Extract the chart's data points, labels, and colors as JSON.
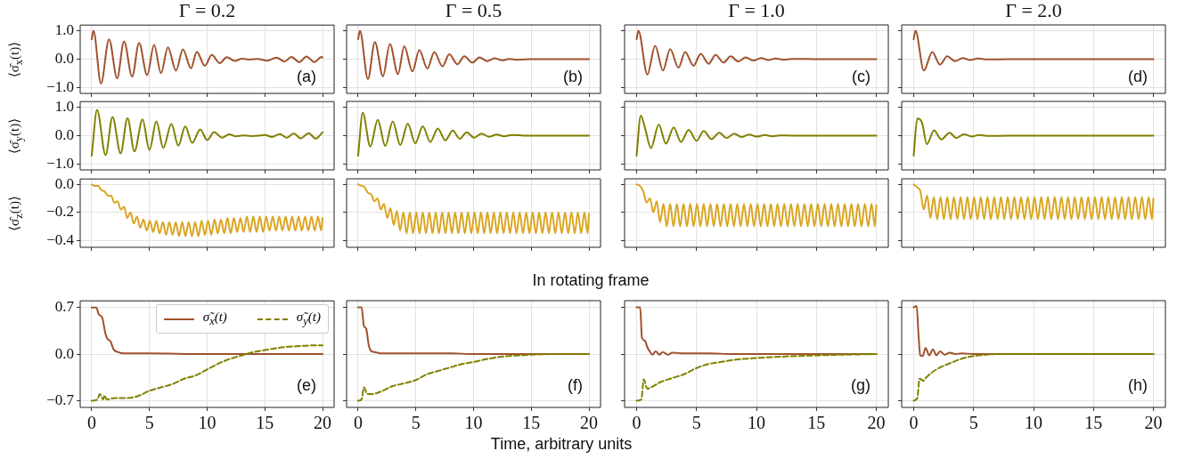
{
  "chart_data": [
    {
      "type": "line",
      "title": "Γ = 0.2",
      "ylabel": "⟨σ̂$_{x}$(t)⟩",
      "annotations": [
        "(a)"
      ],
      "xlim": [
        -1,
        21
      ],
      "xticks": [
        0,
        5,
        10,
        15,
        20
      ],
      "ylim": [
        -1.2,
        1.2
      ],
      "yticks": [
        {
          "value": -1,
          "label": "−1.0"
        },
        {
          "value": 0,
          "label": "0.0"
        },
        {
          "value": 1,
          "label": "1.0"
        }
      ],
      "grid": true,
      "tick_labels": "y",
      "x": [
        0,
        0.15,
        0.8,
        1.5,
        2.2,
        2.8,
        3.5,
        4.1,
        4.8,
        5.4,
        6.0,
        6.6,
        7.3,
        7.9,
        8.6,
        9.1,
        9.8,
        10.4,
        11.1,
        11.7,
        12.4,
        13.0,
        13.7,
        14.4,
        15.2,
        16.0,
        16.7,
        17.3,
        18.0,
        18.6,
        19.3,
        19.9,
        20
      ],
      "series": [
        {
          "color": "#a0522d",
          "values": [
            0.7,
            1.0,
            -0.85,
            0.7,
            -0.67,
            0.63,
            -0.61,
            0.57,
            -0.56,
            0.5,
            -0.49,
            0.42,
            -0.4,
            0.35,
            -0.32,
            0.26,
            -0.23,
            0.15,
            -0.14,
            0.07,
            -0.06,
            0.02,
            -0.01,
            0.01,
            -0.05,
            0.06,
            -0.08,
            0.08,
            -0.1,
            0.1,
            -0.1,
            0.08,
            0.06
          ]
        }
      ]
    },
    {
      "type": "line",
      "title": "Γ = 0.5",
      "annotations": [
        "(b)"
      ],
      "xlim": [
        -1,
        21
      ],
      "xticks": [
        0,
        5,
        10,
        15,
        20
      ],
      "ylim": [
        -1.2,
        1.2
      ],
      "yticks": [
        -1,
        0,
        1
      ],
      "grid": true,
      "tick_labels": false,
      "x": [
        0,
        0.15,
        0.85,
        1.45,
        2.15,
        2.75,
        3.45,
        4.0,
        4.7,
        5.3,
        6.0,
        6.6,
        7.3,
        7.9,
        8.6,
        9.2,
        9.9,
        10.5,
        11.2,
        11.8,
        12.5,
        13.1,
        13.8,
        15,
        20
      ],
      "series": [
        {
          "color": "#a0522d",
          "values": [
            0.7,
            1.0,
            -0.7,
            0.6,
            -0.6,
            0.53,
            -0.52,
            0.45,
            -0.43,
            0.32,
            -0.33,
            0.25,
            -0.25,
            0.17,
            -0.18,
            0.1,
            -0.12,
            0.06,
            -0.07,
            0.03,
            -0.04,
            0.01,
            -0.02,
            0,
            0
          ]
        }
      ]
    },
    {
      "type": "line",
      "title": "Γ = 1.0",
      "annotations": [
        "(c)"
      ],
      "xlim": [
        -1,
        21
      ],
      "xticks": [
        0,
        5,
        10,
        15,
        20
      ],
      "ylim": [
        -1.2,
        1.2
      ],
      "yticks": [
        -1,
        0,
        1
      ],
      "grid": true,
      "tick_labels": false,
      "x": [
        0,
        0.15,
        0.9,
        1.55,
        2.2,
        2.8,
        3.5,
        4.05,
        4.75,
        5.35,
        6.0,
        6.6,
        7.25,
        7.85,
        8.5,
        9.1,
        9.75,
        10.4,
        11.0,
        11.6,
        12.3,
        12.9,
        15,
        20
      ],
      "series": [
        {
          "color": "#a0522d",
          "values": [
            0.7,
            1.0,
            -0.54,
            0.47,
            -0.4,
            0.35,
            -0.3,
            0.25,
            -0.23,
            0.19,
            -0.16,
            0.15,
            -0.12,
            0.1,
            -0.08,
            0.06,
            -0.05,
            0.04,
            -0.03,
            0.02,
            -0.02,
            0.01,
            0,
            0
          ]
        }
      ]
    },
    {
      "type": "line",
      "title": "Γ = 2.0",
      "annotations": [
        "(d)"
      ],
      "xlim": [
        -1,
        21
      ],
      "xticks": [
        0,
        5,
        10,
        15,
        20
      ],
      "ylim": [
        -1.2,
        1.2
      ],
      "yticks": [
        -1,
        0,
        1
      ],
      "grid": true,
      "tick_labels": false,
      "x": [
        0,
        0.15,
        0.85,
        1.55,
        2.2,
        2.8,
        3.45,
        4.1,
        4.7,
        5.35,
        6.0,
        8,
        20
      ],
      "series": [
        {
          "color": "#a0522d",
          "values": [
            0.7,
            1.0,
            -0.4,
            0.25,
            -0.19,
            0.1,
            -0.07,
            0.04,
            -0.03,
            0.02,
            -0.01,
            0,
            0
          ]
        }
      ]
    },
    {
      "type": "line",
      "ylabel": "⟨σ̂$_{y}$(t)⟩",
      "xlim": [
        -1,
        21
      ],
      "xticks": [
        0,
        5,
        10,
        15,
        20
      ],
      "ylim": [
        -1.2,
        1.2
      ],
      "yticks": [
        {
          "value": -1,
          "label": "−1.0"
        },
        {
          "value": 0,
          "label": "0.0"
        },
        {
          "value": 1,
          "label": "1.0"
        }
      ],
      "grid": true,
      "tick_labels": "y",
      "x": [
        0,
        0.46,
        1.2,
        1.8,
        2.5,
        3.1,
        3.7,
        4.4,
        5.0,
        5.6,
        6.2,
        6.9,
        7.5,
        8.1,
        8.7,
        9.4,
        10.0,
        10.6,
        11.3,
        11.9,
        12.5,
        13.1,
        13.8,
        14.4,
        15.0,
        15.6,
        16.3,
        16.9,
        17.5,
        18.1,
        18.8,
        19.4,
        20
      ],
      "series": [
        {
          "color": "#808000",
          "values": [
            -0.7,
            0.91,
            -0.68,
            0.66,
            -0.62,
            0.62,
            -0.55,
            0.57,
            -0.5,
            0.5,
            -0.43,
            0.42,
            -0.35,
            0.33,
            -0.25,
            0.22,
            -0.15,
            0.13,
            -0.07,
            0.05,
            -0.02,
            0.01,
            -0.01,
            0,
            0.03,
            -0.04,
            0.06,
            -0.07,
            0.08,
            -0.09,
            0.09,
            -0.1,
            0.12
          ]
        }
      ]
    },
    {
      "type": "line",
      "xlim": [
        -1,
        21
      ],
      "xticks": [
        0,
        5,
        10,
        15,
        20
      ],
      "ylim": [
        -1.2,
        1.2
      ],
      "yticks": [
        -1,
        0,
        1
      ],
      "grid": true,
      "tick_labels": false,
      "x": [
        0,
        0.4,
        1.05,
        1.7,
        2.35,
        3.0,
        3.65,
        4.3,
        4.95,
        5.6,
        6.25,
        6.9,
        7.55,
        8.2,
        8.8,
        9.4,
        10.05,
        10.7,
        11.35,
        12.0,
        12.65,
        13.3,
        15,
        20
      ],
      "series": [
        {
          "color": "#808000",
          "values": [
            -0.7,
            0.8,
            -0.38,
            0.55,
            -0.36,
            0.5,
            -0.33,
            0.42,
            -0.27,
            0.33,
            -0.22,
            0.25,
            -0.16,
            0.18,
            -0.11,
            0.12,
            -0.07,
            0.07,
            -0.04,
            0.04,
            -0.02,
            0.02,
            0,
            0
          ]
        }
      ]
    },
    {
      "type": "line",
      "xlim": [
        -1,
        21
      ],
      "xticks": [
        0,
        5,
        10,
        15,
        20
      ],
      "ylim": [
        -1.2,
        1.2
      ],
      "yticks": [
        -1,
        0,
        1
      ],
      "grid": true,
      "tick_labels": false,
      "x": [
        0,
        0.35,
        0.7,
        1.2,
        1.85,
        2.45,
        3.1,
        3.7,
        4.35,
        5.0,
        5.6,
        6.25,
        6.9,
        7.5,
        8.15,
        8.75,
        9.4,
        10.0,
        10.7,
        11.3,
        11.95,
        13,
        20
      ],
      "series": [
        {
          "color": "#808000",
          "values": [
            -0.7,
            0.7,
            0.27,
            -0.44,
            0.39,
            -0.28,
            0.29,
            -0.22,
            0.2,
            -0.18,
            0.16,
            -0.12,
            0.1,
            -0.08,
            0.07,
            -0.05,
            0.04,
            -0.03,
            0.02,
            -0.02,
            0.01,
            0,
            0
          ]
        }
      ]
    },
    {
      "type": "line",
      "xlim": [
        -1,
        21
      ],
      "xticks": [
        0,
        5,
        10,
        15,
        20
      ],
      "ylim": [
        -1.2,
        1.2
      ],
      "yticks": [
        -1,
        0,
        1
      ],
      "grid": true,
      "tick_labels": false,
      "x": [
        0,
        0.3,
        0.7,
        1.1,
        1.7,
        2.3,
        3.0,
        3.55,
        4.2,
        4.85,
        5.45,
        6.1,
        8,
        20
      ],
      "series": [
        {
          "color": "#808000",
          "values": [
            -0.7,
            0.6,
            0.45,
            -0.3,
            0.19,
            -0.13,
            0.1,
            -0.08,
            0.05,
            -0.03,
            0.02,
            -0.01,
            0,
            0
          ]
        }
      ]
    },
    {
      "type": "line",
      "ylabel": "⟨σ̂$_{z}$(t)⟩",
      "xlim": [
        -1,
        21
      ],
      "xticks": [
        0,
        5,
        10,
        15,
        20
      ],
      "ylim": [
        -0.45,
        0.04
      ],
      "yticks": [
        {
          "value": -0.4,
          "label": "−0.4"
        },
        {
          "value": -0.2,
          "label": "−0.2"
        },
        {
          "value": 0,
          "label": "0.0"
        }
      ],
      "grid": true,
      "tick_labels": "y",
      "x": [
        0,
        0.28,
        0.56,
        0.84,
        1.12,
        1.4,
        1.68,
        1.96,
        2.24,
        2.52,
        2.8,
        3.08,
        3.36,
        3.64,
        3.92,
        4.2,
        4.48,
        4.76,
        5.04,
        5.32,
        5.6,
        5.88,
        6.16,
        6.44,
        6.72,
        7,
        7.28,
        7.56,
        7.84,
        8.12,
        8.4,
        8.68,
        8.96,
        9.24,
        9.52,
        9.8,
        10.08,
        10.36,
        10.64,
        10.92,
        11.2,
        11.48,
        11.76,
        12.04,
        12.32,
        12.6,
        12.88,
        13.16,
        13.44,
        13.72,
        14,
        14.28,
        14.56,
        14.84,
        15.12,
        15.4,
        15.68,
        15.96,
        16.24,
        16.52,
        16.8,
        17.08,
        17.36,
        17.64,
        17.92,
        18.2,
        18.48,
        18.76,
        19.04,
        19.32,
        19.6,
        19.88,
        20
      ],
      "series": [
        {
          "color": "#daa520",
          "values": [
            0,
            -0.01,
            -0.01,
            -0.04,
            -0.05,
            -0.08,
            -0.08,
            -0.13,
            -0.12,
            -0.18,
            -0.16,
            -0.24,
            -0.2,
            -0.28,
            -0.23,
            -0.31,
            -0.25,
            -0.33,
            -0.26,
            -0.34,
            -0.26,
            -0.35,
            -0.27,
            -0.36,
            -0.27,
            -0.36,
            -0.27,
            -0.37,
            -0.27,
            -0.37,
            -0.27,
            -0.37,
            -0.27,
            -0.37,
            -0.26,
            -0.36,
            -0.26,
            -0.36,
            -0.25,
            -0.35,
            -0.25,
            -0.35,
            -0.24,
            -0.35,
            -0.24,
            -0.34,
            -0.24,
            -0.34,
            -0.23,
            -0.34,
            -0.23,
            -0.34,
            -0.23,
            -0.34,
            -0.23,
            -0.33,
            -0.23,
            -0.33,
            -0.23,
            -0.33,
            -0.23,
            -0.33,
            -0.23,
            -0.33,
            -0.23,
            -0.33,
            -0.23,
            -0.33,
            -0.23,
            -0.33,
            -0.23,
            -0.33,
            -0.24
          ]
        }
      ]
    },
    {
      "type": "line",
      "xlim": [
        -1,
        21
      ],
      "xticks": [
        0,
        5,
        10,
        15,
        20
      ],
      "ylim": [
        -0.45,
        0.04
      ],
      "yticks": [
        -0.4,
        -0.2,
        0
      ],
      "grid": true,
      "tick_labels": false,
      "x": [
        0,
        0.28,
        0.56,
        0.84,
        1.12,
        1.4,
        1.68,
        1.96,
        2.24,
        2.52,
        2.8,
        3.08,
        3.36,
        3.64,
        3.92,
        4.2,
        4.48,
        4.76,
        5.04,
        5.32,
        5.6,
        5.88,
        6.16,
        6.44,
        6.72,
        7,
        7.28,
        7.56,
        7.84,
        8.12,
        8.4,
        8.68,
        8.96,
        9.24,
        9.52,
        9.8,
        10.08,
        10.36,
        10.64,
        10.92,
        11.2,
        11.48,
        11.76,
        12.04,
        12.32,
        12.6,
        12.88,
        13.16,
        13.44,
        13.72,
        14,
        14.28,
        14.56,
        14.84,
        15.12,
        15.4,
        15.68,
        15.96,
        16.24,
        16.52,
        16.8,
        17.08,
        17.36,
        17.64,
        17.92,
        18.2,
        18.48,
        18.76,
        19.04,
        19.32,
        19.6,
        19.88,
        20
      ],
      "series": [
        {
          "color": "#daa520",
          "values": [
            0,
            -0.01,
            -0.02,
            -0.06,
            -0.07,
            -0.12,
            -0.1,
            -0.18,
            -0.14,
            -0.24,
            -0.17,
            -0.29,
            -0.19,
            -0.33,
            -0.2,
            -0.35,
            -0.2,
            -0.35,
            -0.2,
            -0.35,
            -0.2,
            -0.35,
            -0.2,
            -0.35,
            -0.2,
            -0.35,
            -0.2,
            -0.35,
            -0.2,
            -0.35,
            -0.2,
            -0.35,
            -0.2,
            -0.35,
            -0.2,
            -0.35,
            -0.2,
            -0.35,
            -0.2,
            -0.35,
            -0.2,
            -0.35,
            -0.2,
            -0.35,
            -0.2,
            -0.35,
            -0.2,
            -0.35,
            -0.2,
            -0.35,
            -0.2,
            -0.35,
            -0.2,
            -0.35,
            -0.2,
            -0.35,
            -0.2,
            -0.35,
            -0.2,
            -0.35,
            -0.2,
            -0.35,
            -0.2,
            -0.35,
            -0.2,
            -0.35,
            -0.2,
            -0.35,
            -0.2,
            -0.35,
            -0.2,
            -0.35,
            -0.21
          ]
        }
      ]
    },
    {
      "type": "line",
      "xlim": [
        -1,
        21
      ],
      "xticks": [
        0,
        5,
        10,
        15,
        20
      ],
      "ylim": [
        -0.45,
        0.04
      ],
      "yticks": [
        -0.4,
        -0.2,
        0
      ],
      "grid": true,
      "tick_labels": false,
      "x": [
        0,
        0.28,
        0.56,
        0.84,
        1.12,
        1.4,
        1.68,
        1.96,
        2.24,
        2.52,
        2.8,
        3.08,
        3.36,
        3.64,
        3.92,
        4.2,
        4.48,
        4.76,
        5.04,
        5.32,
        5.6,
        5.88,
        6.16,
        6.44,
        6.72,
        7,
        7.28,
        7.56,
        7.84,
        8.12,
        8.4,
        8.68,
        8.96,
        9.24,
        9.52,
        9.8,
        10.08,
        10.36,
        10.64,
        10.92,
        11.2,
        11.48,
        11.76,
        12.04,
        12.32,
        12.6,
        12.88,
        13.16,
        13.44,
        13.72,
        14,
        14.28,
        14.56,
        14.84,
        15.12,
        15.4,
        15.68,
        15.96,
        16.24,
        16.52,
        16.8,
        17.08,
        17.36,
        17.64,
        17.92,
        18.2,
        18.48,
        18.76,
        19.04,
        19.32,
        19.6,
        19.88,
        20
      ],
      "series": [
        {
          "color": "#daa520",
          "values": [
            0,
            -0.01,
            -0.05,
            -0.13,
            -0.1,
            -0.2,
            -0.12,
            -0.27,
            -0.14,
            -0.3,
            -0.14,
            -0.3,
            -0.14,
            -0.3,
            -0.14,
            -0.3,
            -0.14,
            -0.3,
            -0.14,
            -0.3,
            -0.14,
            -0.3,
            -0.14,
            -0.3,
            -0.14,
            -0.3,
            -0.14,
            -0.3,
            -0.14,
            -0.3,
            -0.14,
            -0.3,
            -0.14,
            -0.3,
            -0.14,
            -0.3,
            -0.14,
            -0.3,
            -0.14,
            -0.3,
            -0.14,
            -0.3,
            -0.14,
            -0.3,
            -0.14,
            -0.3,
            -0.14,
            -0.3,
            -0.14,
            -0.3,
            -0.14,
            -0.3,
            -0.14,
            -0.3,
            -0.14,
            -0.3,
            -0.14,
            -0.3,
            -0.14,
            -0.3,
            -0.14,
            -0.3,
            -0.14,
            -0.3,
            -0.14,
            -0.3,
            -0.14,
            -0.3,
            -0.14,
            -0.3,
            -0.14,
            -0.3,
            -0.15
          ]
        }
      ]
    },
    {
      "type": "line",
      "xlim": [
        -1,
        21
      ],
      "xticks": [
        0,
        5,
        10,
        15,
        20
      ],
      "ylim": [
        -0.45,
        0.04
      ],
      "yticks": [
        -0.4,
        -0.2,
        0
      ],
      "grid": true,
      "tick_labels": false,
      "x": [
        0,
        0.28,
        0.56,
        0.84,
        1.12,
        1.4,
        1.68,
        1.96,
        2.24,
        2.52,
        2.8,
        3.08,
        3.36,
        3.64,
        3.92,
        4.2,
        4.48,
        4.76,
        5.04,
        5.32,
        5.6,
        5.88,
        6.16,
        6.44,
        6.72,
        7,
        7.28,
        7.56,
        7.84,
        8.12,
        8.4,
        8.68,
        8.96,
        9.24,
        9.52,
        9.8,
        10.08,
        10.36,
        10.64,
        10.92,
        11.2,
        11.48,
        11.76,
        12.04,
        12.32,
        12.6,
        12.88,
        13.16,
        13.44,
        13.72,
        14,
        14.28,
        14.56,
        14.84,
        15.12,
        15.4,
        15.68,
        15.96,
        16.24,
        16.52,
        16.8,
        17.08,
        17.36,
        17.64,
        17.92,
        18.2,
        18.48,
        18.76,
        19.04,
        19.32,
        19.6,
        19.88,
        20
      ],
      "series": [
        {
          "color": "#daa520",
          "values": [
            0,
            -0.02,
            -0.05,
            -0.18,
            -0.08,
            -0.24,
            -0.09,
            -0.25,
            -0.09,
            -0.25,
            -0.09,
            -0.25,
            -0.09,
            -0.25,
            -0.09,
            -0.25,
            -0.09,
            -0.25,
            -0.09,
            -0.25,
            -0.09,
            -0.25,
            -0.09,
            -0.25,
            -0.09,
            -0.25,
            -0.09,
            -0.25,
            -0.09,
            -0.25,
            -0.09,
            -0.25,
            -0.09,
            -0.25,
            -0.09,
            -0.25,
            -0.09,
            -0.25,
            -0.09,
            -0.25,
            -0.09,
            -0.25,
            -0.09,
            -0.25,
            -0.09,
            -0.25,
            -0.09,
            -0.25,
            -0.09,
            -0.25,
            -0.09,
            -0.25,
            -0.09,
            -0.25,
            -0.09,
            -0.25,
            -0.09,
            -0.25,
            -0.09,
            -0.25,
            -0.09,
            -0.25,
            -0.09,
            -0.25,
            -0.09,
            -0.25,
            -0.09,
            -0.25,
            -0.09,
            -0.25,
            -0.09,
            -0.25,
            -0.1
          ]
        }
      ]
    },
    {
      "type": "line",
      "annotations": [
        "(e)"
      ],
      "legend": "top right",
      "xlim": [
        -1,
        21
      ],
      "xticks": [
        0,
        5,
        10,
        15,
        20
      ],
      "ylim": [
        -0.8,
        0.8
      ],
      "yticks": [
        {
          "value": -0.7,
          "label": "−0.7"
        },
        {
          "value": 0,
          "label": "0.0"
        },
        {
          "value": 0.7,
          "label": "0.7"
        }
      ],
      "grid": true,
      "series": [
        {
          "name": "σ̃$_{x}$(t)",
          "color": "#a0522d",
          "line_style": "solid",
          "x": [
            0,
            0.4,
            0.6,
            0.9,
            1.2,
            1.4,
            1.6,
            1.9,
            2.3,
            2.8,
            3.5,
            5,
            10,
            20
          ],
          "values": [
            0.7,
            0.7,
            0.6,
            0.55,
            0.3,
            0.22,
            0.2,
            0.07,
            0.03,
            0.01,
            0.01,
            0.01,
            0,
            0
          ]
        },
        {
          "name": "σ̃$_{y}$(t)",
          "color": "#808000",
          "line_style": "dashed",
          "x": [
            0,
            0.5,
            0.7,
            1.0,
            1.1,
            1.3,
            2,
            3,
            4,
            5,
            6,
            7,
            8,
            9,
            10,
            11,
            12,
            13,
            14,
            15,
            16,
            17,
            18,
            19,
            20
          ],
          "values": [
            -0.7,
            -0.68,
            -0.6,
            -0.68,
            -0.62,
            -0.68,
            -0.66,
            -0.66,
            -0.63,
            -0.55,
            -0.5,
            -0.45,
            -0.37,
            -0.32,
            -0.23,
            -0.14,
            -0.07,
            -0.02,
            0.03,
            0.06,
            0.09,
            0.11,
            0.12,
            0.13,
            0.13
          ]
        }
      ]
    },
    {
      "type": "line",
      "title": "In rotating frame",
      "xlabel": "Time, arbitrary units",
      "annotations": [
        "(f)"
      ],
      "xlim": [
        -1,
        21
      ],
      "xticks": [
        0,
        5,
        10,
        15,
        20
      ],
      "ylim": [
        -0.8,
        0.8
      ],
      "yticks": [
        -0.7,
        0,
        0.7
      ],
      "grid": true,
      "tick_labels": "x",
      "series": [
        {
          "color": "#a0522d",
          "line_style": "solid",
          "x": [
            0,
            0.3,
            0.5,
            0.7,
            0.9,
            1.1,
            1.4,
            2,
            3,
            5,
            8,
            10,
            20
          ],
          "values": [
            0.7,
            0.7,
            0.42,
            0.38,
            0.15,
            0.05,
            0.03,
            0.01,
            0.01,
            0.01,
            0.01,
            0,
            0
          ]
        },
        {
          "color": "#808000",
          "line_style": "dashed",
          "x": [
            0,
            0.3,
            0.5,
            0.8,
            1.2,
            2,
            3,
            4,
            5,
            6,
            7,
            8,
            9,
            10,
            11,
            12,
            13,
            14,
            15,
            17,
            20
          ],
          "values": [
            -0.7,
            -0.68,
            -0.5,
            -0.6,
            -0.6,
            -0.56,
            -0.48,
            -0.44,
            -0.39,
            -0.3,
            -0.25,
            -0.2,
            -0.15,
            -0.12,
            -0.08,
            -0.05,
            -0.03,
            -0.02,
            -0.01,
            0,
            0
          ]
        }
      ]
    },
    {
      "type": "line",
      "annotations": [
        "(g)"
      ],
      "xlim": [
        -1,
        21
      ],
      "xticks": [
        0,
        5,
        10,
        15,
        20
      ],
      "ylim": [
        -0.8,
        0.8
      ],
      "yticks": [
        -0.7,
        0,
        0.7
      ],
      "grid": true,
      "tick_labels": "x",
      "series": [
        {
          "color": "#a0522d",
          "line_style": "solid",
          "x": [
            0,
            0.3,
            0.45,
            0.7,
            0.9,
            1.1,
            1.3,
            1.6,
            1.9,
            2.2,
            2.6,
            3,
            4,
            6,
            8,
            20
          ],
          "values": [
            0.7,
            0.7,
            0.24,
            0.2,
            0.1,
            0.04,
            -0.01,
            0.04,
            -0.01,
            0.03,
            -0.01,
            0.02,
            0.01,
            0.01,
            0,
            0
          ]
        },
        {
          "color": "#808000",
          "line_style": "dashed",
          "x": [
            0,
            0.4,
            0.6,
            0.9,
            1.2,
            2,
            3,
            4,
            5,
            6,
            7,
            8,
            10,
            12,
            15,
            20
          ],
          "values": [
            -0.7,
            -0.68,
            -0.38,
            -0.52,
            -0.5,
            -0.42,
            -0.36,
            -0.3,
            -0.21,
            -0.15,
            -0.12,
            -0.09,
            -0.06,
            -0.04,
            -0.02,
            0
          ]
        }
      ]
    },
    {
      "type": "line",
      "annotations": [
        "(h)"
      ],
      "xlim": [
        -1,
        21
      ],
      "xticks": [
        0,
        5,
        10,
        15,
        20
      ],
      "ylim": [
        -0.8,
        0.8
      ],
      "yticks": [
        -0.7,
        0,
        0.7
      ],
      "grid": true,
      "tick_labels": "x",
      "series": [
        {
          "color": "#a0522d",
          "line_style": "solid",
          "x": [
            0,
            0.25,
            0.4,
            0.55,
            0.75,
            1.0,
            1.3,
            1.6,
            1.9,
            2.2,
            2.6,
            3.0,
            3.5,
            4,
            5,
            20
          ],
          "values": [
            0.7,
            0.72,
            0.3,
            -0.02,
            -0.03,
            0.09,
            -0.02,
            0.07,
            -0.02,
            0.04,
            -0.01,
            0.02,
            0,
            0.01,
            0,
            0
          ]
        },
        {
          "color": "#808000",
          "line_style": "dashed",
          "x": [
            0,
            0.3,
            0.5,
            0.8,
            1.0,
            1.5,
            2,
            3,
            4,
            5,
            6,
            7,
            20
          ],
          "values": [
            -0.7,
            -0.66,
            -0.37,
            -0.4,
            -0.36,
            -0.28,
            -0.22,
            -0.14,
            -0.07,
            -0.03,
            -0.01,
            0,
            0
          ]
        }
      ]
    }
  ]
}
